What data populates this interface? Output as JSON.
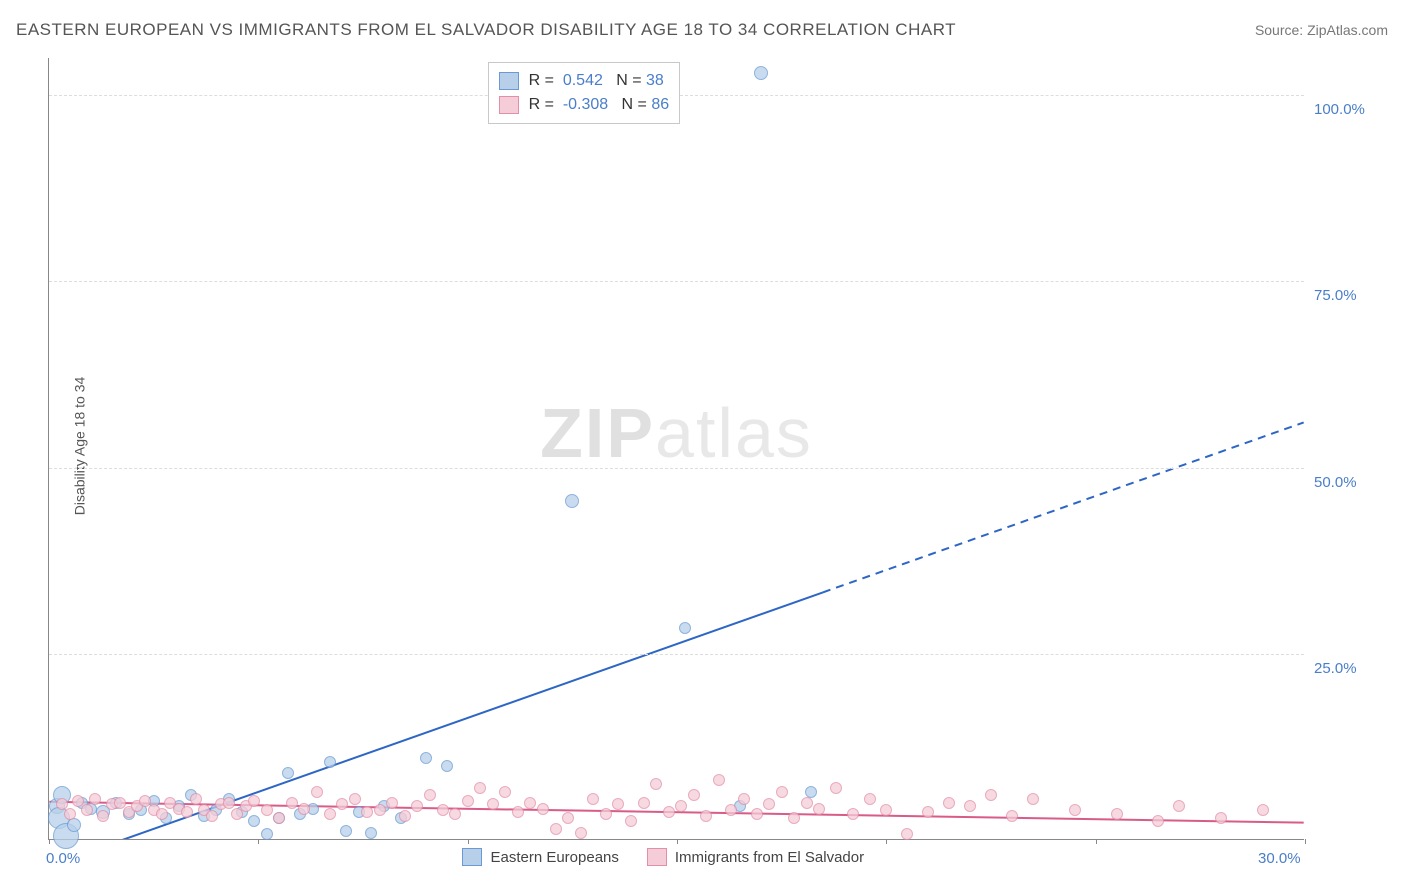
{
  "title": "EASTERN EUROPEAN VS IMMIGRANTS FROM EL SALVADOR DISABILITY AGE 18 TO 34 CORRELATION CHART",
  "source_label": "Source: ZipAtlas.com",
  "ylabel": "Disability Age 18 to 34",
  "watermark": {
    "part1": "ZIP",
    "part2": "atlas"
  },
  "chart": {
    "type": "scatter",
    "background_color": "#ffffff",
    "grid_color": "#dddddd",
    "axis_color": "#888888",
    "tick_label_color": "#4a7ec9",
    "xlim": [
      0,
      30
    ],
    "ylim": [
      0,
      105
    ],
    "xticks": [
      0,
      5,
      10,
      15,
      20,
      25,
      30
    ],
    "xtick_labels": [
      "0.0%",
      "",
      "",
      "",
      "",
      "",
      "30.0%"
    ],
    "yticks": [
      25,
      50,
      75,
      100
    ],
    "ytick_labels": [
      "25.0%",
      "50.0%",
      "75.0%",
      "100.0%"
    ],
    "series": [
      {
        "name": "Eastern Europeans",
        "fill": "#b7cfe9",
        "stroke": "#6a9ad4",
        "line_color": "#2d66c4",
        "r_value": "0.542",
        "n_value": "38",
        "trend": {
          "x1": 0.3,
          "y1": -3,
          "x2": 30,
          "y2": 56,
          "solid_until_x": 18.5
        },
        "points": [
          {
            "x": 0.2,
            "y": 4.5,
            "r": 8
          },
          {
            "x": 0.25,
            "y": 3.0,
            "r": 11
          },
          {
            "x": 0.3,
            "y": 6.0,
            "r": 9
          },
          {
            "x": 0.4,
            "y": 0.5,
            "r": 13
          },
          {
            "x": 0.6,
            "y": 2.0,
            "r": 7
          },
          {
            "x": 0.8,
            "y": 5.0,
            "r": 6
          },
          {
            "x": 1.0,
            "y": 4.2,
            "r": 6
          },
          {
            "x": 1.3,
            "y": 3.8,
            "r": 7
          },
          {
            "x": 1.6,
            "y": 5.0,
            "r": 6
          },
          {
            "x": 1.9,
            "y": 3.5,
            "r": 6
          },
          {
            "x": 2.2,
            "y": 4.0,
            "r": 6
          },
          {
            "x": 2.5,
            "y": 5.2,
            "r": 6
          },
          {
            "x": 2.8,
            "y": 3.0,
            "r": 6
          },
          {
            "x": 3.1,
            "y": 4.5,
            "r": 6
          },
          {
            "x": 3.4,
            "y": 6.0,
            "r": 6
          },
          {
            "x": 3.7,
            "y": 3.2,
            "r": 6
          },
          {
            "x": 4.0,
            "y": 4.0,
            "r": 6
          },
          {
            "x": 4.3,
            "y": 5.5,
            "r": 6
          },
          {
            "x": 4.6,
            "y": 3.8,
            "r": 6
          },
          {
            "x": 4.9,
            "y": 2.5,
            "r": 6
          },
          {
            "x": 5.2,
            "y": 0.8,
            "r": 6
          },
          {
            "x": 5.5,
            "y": 3.0,
            "r": 6
          },
          {
            "x": 5.7,
            "y": 9.0,
            "r": 6
          },
          {
            "x": 6.0,
            "y": 3.5,
            "r": 6
          },
          {
            "x": 6.3,
            "y": 4.2,
            "r": 6
          },
          {
            "x": 6.7,
            "y": 10.5,
            "r": 6
          },
          {
            "x": 7.1,
            "y": 1.2,
            "r": 6
          },
          {
            "x": 7.4,
            "y": 3.8,
            "r": 6
          },
          {
            "x": 7.7,
            "y": 1.0,
            "r": 6
          },
          {
            "x": 8.0,
            "y": 4.5,
            "r": 6
          },
          {
            "x": 8.4,
            "y": 3.0,
            "r": 6
          },
          {
            "x": 9.0,
            "y": 11.0,
            "r": 6
          },
          {
            "x": 9.5,
            "y": 10.0,
            "r": 6
          },
          {
            "x": 12.5,
            "y": 45.5,
            "r": 7
          },
          {
            "x": 15.2,
            "y": 28.5,
            "r": 6
          },
          {
            "x": 16.5,
            "y": 4.5,
            "r": 6
          },
          {
            "x": 18.2,
            "y": 6.5,
            "r": 6
          },
          {
            "x": 17.0,
            "y": 103.0,
            "r": 7
          }
        ]
      },
      {
        "name": "Immigrants from El Salvador",
        "fill": "#f5cdd8",
        "stroke": "#e28fa8",
        "line_color": "#d85b88",
        "r_value": "-0.308",
        "n_value": "86",
        "trend": {
          "x1": 0,
          "y1": 5.0,
          "x2": 30,
          "y2": 2.2,
          "solid_until_x": 30
        },
        "points": [
          {
            "x": 0.3,
            "y": 4.8,
            "r": 6
          },
          {
            "x": 0.5,
            "y": 3.5,
            "r": 6
          },
          {
            "x": 0.7,
            "y": 5.2,
            "r": 6
          },
          {
            "x": 0.9,
            "y": 4.0,
            "r": 6
          },
          {
            "x": 1.1,
            "y": 5.5,
            "r": 6
          },
          {
            "x": 1.3,
            "y": 3.2,
            "r": 6
          },
          {
            "x": 1.5,
            "y": 4.8,
            "r": 6
          },
          {
            "x": 1.7,
            "y": 5.0,
            "r": 6
          },
          {
            "x": 1.9,
            "y": 3.8,
            "r": 6
          },
          {
            "x": 2.1,
            "y": 4.5,
            "r": 6
          },
          {
            "x": 2.3,
            "y": 5.2,
            "r": 6
          },
          {
            "x": 2.5,
            "y": 4.0,
            "r": 6
          },
          {
            "x": 2.7,
            "y": 3.5,
            "r": 6
          },
          {
            "x": 2.9,
            "y": 5.0,
            "r": 6
          },
          {
            "x": 3.1,
            "y": 4.2,
            "r": 6
          },
          {
            "x": 3.3,
            "y": 3.8,
            "r": 6
          },
          {
            "x": 3.5,
            "y": 5.5,
            "r": 6
          },
          {
            "x": 3.7,
            "y": 4.0,
            "r": 6
          },
          {
            "x": 3.9,
            "y": 3.2,
            "r": 6
          },
          {
            "x": 4.1,
            "y": 4.8,
            "r": 6
          },
          {
            "x": 4.3,
            "y": 5.0,
            "r": 6
          },
          {
            "x": 4.5,
            "y": 3.5,
            "r": 6
          },
          {
            "x": 4.7,
            "y": 4.5,
            "r": 6
          },
          {
            "x": 4.9,
            "y": 5.2,
            "r": 6
          },
          {
            "x": 5.2,
            "y": 4.0,
            "r": 6
          },
          {
            "x": 5.5,
            "y": 3.0,
            "r": 6
          },
          {
            "x": 5.8,
            "y": 5.0,
            "r": 6
          },
          {
            "x": 6.1,
            "y": 4.2,
            "r": 6
          },
          {
            "x": 6.4,
            "y": 6.5,
            "r": 6
          },
          {
            "x": 6.7,
            "y": 3.5,
            "r": 6
          },
          {
            "x": 7.0,
            "y": 4.8,
            "r": 6
          },
          {
            "x": 7.3,
            "y": 5.5,
            "r": 6
          },
          {
            "x": 7.6,
            "y": 3.8,
            "r": 6
          },
          {
            "x": 7.9,
            "y": 4.0,
            "r": 6
          },
          {
            "x": 8.2,
            "y": 5.0,
            "r": 6
          },
          {
            "x": 8.5,
            "y": 3.2,
            "r": 6
          },
          {
            "x": 8.8,
            "y": 4.5,
            "r": 6
          },
          {
            "x": 9.1,
            "y": 6.0,
            "r": 6
          },
          {
            "x": 9.4,
            "y": 4.0,
            "r": 6
          },
          {
            "x": 9.7,
            "y": 3.5,
            "r": 6
          },
          {
            "x": 10.0,
            "y": 5.2,
            "r": 6
          },
          {
            "x": 10.3,
            "y": 7.0,
            "r": 6
          },
          {
            "x": 10.6,
            "y": 4.8,
            "r": 6
          },
          {
            "x": 10.9,
            "y": 6.5,
            "r": 6
          },
          {
            "x": 11.2,
            "y": 3.8,
            "r": 6
          },
          {
            "x": 11.5,
            "y": 5.0,
            "r": 6
          },
          {
            "x": 11.8,
            "y": 4.2,
            "r": 6
          },
          {
            "x": 12.1,
            "y": 1.5,
            "r": 6
          },
          {
            "x": 12.4,
            "y": 3.0,
            "r": 6
          },
          {
            "x": 12.7,
            "y": 1.0,
            "r": 6
          },
          {
            "x": 13.0,
            "y": 5.5,
            "r": 6
          },
          {
            "x": 13.3,
            "y": 3.5,
            "r": 6
          },
          {
            "x": 13.6,
            "y": 4.8,
            "r": 6
          },
          {
            "x": 13.9,
            "y": 2.5,
            "r": 6
          },
          {
            "x": 14.2,
            "y": 5.0,
            "r": 6
          },
          {
            "x": 14.5,
            "y": 7.5,
            "r": 6
          },
          {
            "x": 14.8,
            "y": 3.8,
            "r": 6
          },
          {
            "x": 15.1,
            "y": 4.5,
            "r": 6
          },
          {
            "x": 15.4,
            "y": 6.0,
            "r": 6
          },
          {
            "x": 15.7,
            "y": 3.2,
            "r": 6
          },
          {
            "x": 16.0,
            "y": 8.0,
            "r": 6
          },
          {
            "x": 16.3,
            "y": 4.0,
            "r": 6
          },
          {
            "x": 16.6,
            "y": 5.5,
            "r": 6
          },
          {
            "x": 16.9,
            "y": 3.5,
            "r": 6
          },
          {
            "x": 17.2,
            "y": 4.8,
            "r": 6
          },
          {
            "x": 17.5,
            "y": 6.5,
            "r": 6
          },
          {
            "x": 17.8,
            "y": 3.0,
            "r": 6
          },
          {
            "x": 18.1,
            "y": 5.0,
            "r": 6
          },
          {
            "x": 18.4,
            "y": 4.2,
            "r": 6
          },
          {
            "x": 18.8,
            "y": 7.0,
            "r": 6
          },
          {
            "x": 19.2,
            "y": 3.5,
            "r": 6
          },
          {
            "x": 19.6,
            "y": 5.5,
            "r": 6
          },
          {
            "x": 20.0,
            "y": 4.0,
            "r": 6
          },
          {
            "x": 20.5,
            "y": 0.8,
            "r": 6
          },
          {
            "x": 21.0,
            "y": 3.8,
            "r": 6
          },
          {
            "x": 21.5,
            "y": 5.0,
            "r": 6
          },
          {
            "x": 22.0,
            "y": 4.5,
            "r": 6
          },
          {
            "x": 22.5,
            "y": 6.0,
            "r": 6
          },
          {
            "x": 23.0,
            "y": 3.2,
            "r": 6
          },
          {
            "x": 23.5,
            "y": 5.5,
            "r": 6
          },
          {
            "x": 24.5,
            "y": 4.0,
            "r": 6
          },
          {
            "x": 25.5,
            "y": 3.5,
            "r": 6
          },
          {
            "x": 26.5,
            "y": 2.5,
            "r": 6
          },
          {
            "x": 27.0,
            "y": 4.5,
            "r": 6
          },
          {
            "x": 28.0,
            "y": 3.0,
            "r": 6
          },
          {
            "x": 29.0,
            "y": 4.0,
            "r": 6
          }
        ]
      }
    ],
    "legend_top": {
      "r_label": "R = ",
      "n_label": "N = "
    },
    "legend_bottom": {
      "items": [
        "Eastern Europeans",
        "Immigrants from El Salvador"
      ]
    }
  }
}
